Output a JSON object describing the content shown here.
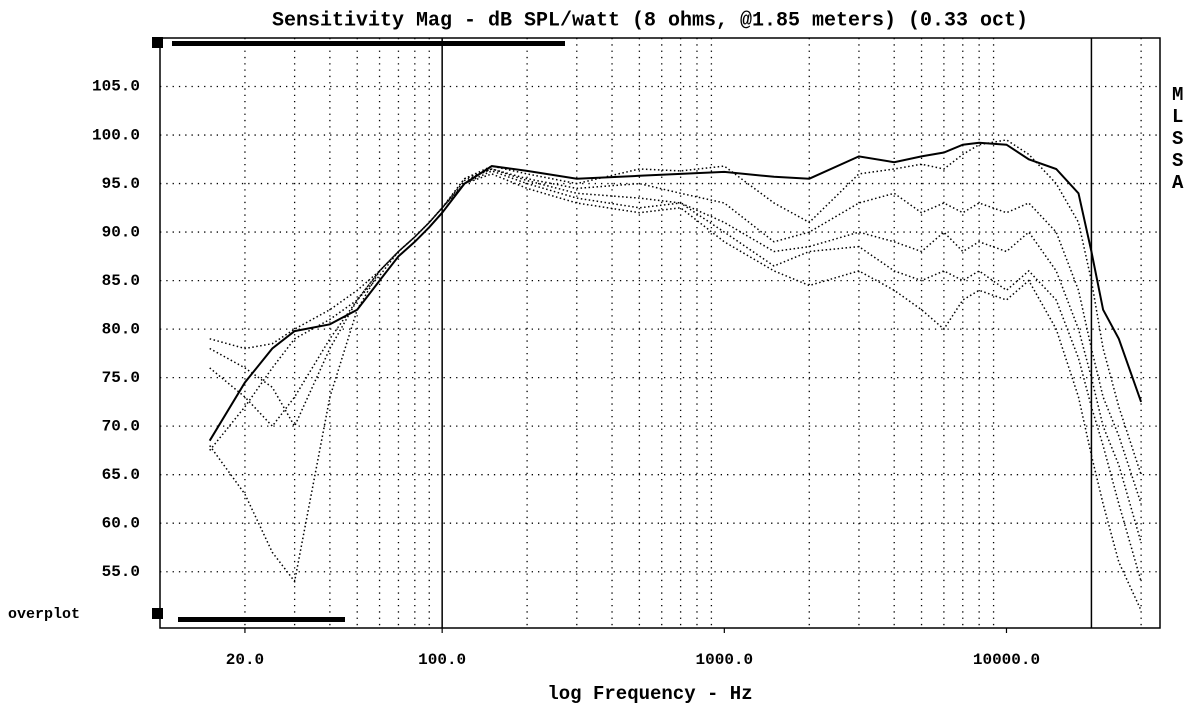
{
  "chart_data": {
    "type": "line",
    "title": "Sensitivity Mag - dB SPL/watt (8 ohms, @1.85 meters) (0.33 oct)",
    "x_label": "log Frequency - Hz",
    "side_label": "MLSSA",
    "overlay_label": "overplot",
    "x_scale": "log",
    "xlim": [
      10,
      35000
    ],
    "ylim": [
      49.2,
      110
    ],
    "xticks": [
      {
        "value": 20,
        "label": "20.0"
      },
      {
        "value": 100,
        "label": "100.0"
      },
      {
        "value": 1000,
        "label": "1000.0"
      },
      {
        "value": 10000,
        "label": "10000.0"
      }
    ],
    "yticks": [
      {
        "value": 55,
        "label": "55.0"
      },
      {
        "value": 60,
        "label": "60.0"
      },
      {
        "value": 65,
        "label": "65.0"
      },
      {
        "value": 70,
        "label": "70.0"
      },
      {
        "value": 75,
        "label": "75.0"
      },
      {
        "value": 80,
        "label": "80.0"
      },
      {
        "value": 85,
        "label": "85.0"
      },
      {
        "value": 90,
        "label": "90.0"
      },
      {
        "value": 95,
        "label": "95.0"
      },
      {
        "value": 100,
        "label": "100.0"
      },
      {
        "value": 105,
        "label": "105.0"
      }
    ],
    "grid": true,
    "xgrid": [
      20,
      30,
      40,
      50,
      60,
      70,
      80,
      90,
      200,
      300,
      400,
      500,
      600,
      700,
      800,
      900,
      2000,
      3000,
      4000,
      5000,
      6000,
      7000,
      8000,
      9000,
      30000
    ],
    "vlines": [
      100,
      20000
    ],
    "x": [
      15,
      20,
      25,
      30,
      40,
      50,
      60,
      70,
      80,
      90,
      100,
      120,
      150,
      200,
      300,
      500,
      700,
      1000,
      1500,
      2000,
      3000,
      4000,
      5000,
      6000,
      7000,
      8000,
      10000,
      12000,
      15000,
      18000,
      20000,
      22000,
      25000,
      30000
    ],
    "series": [
      {
        "color": "#000000",
        "line_style": "solid",
        "values": [
          68.5,
          74.5,
          78,
          79.8,
          80.5,
          82,
          85,
          87.5,
          89,
          90.5,
          92,
          95,
          96.8,
          96.3,
          95.5,
          95.8,
          96,
          96.2,
          95.7,
          95.5,
          97.8,
          97.2,
          97.8,
          98.2,
          99,
          99.2,
          99,
          97.5,
          96.5,
          94,
          88,
          82,
          79,
          72.5
        ]
      },
      {
        "color": "#000000",
        "line_style": "dotted",
        "values": [
          67.5,
          72,
          76,
          79,
          81,
          83,
          85.5,
          88,
          89.5,
          91,
          92.5,
          95.5,
          96.8,
          96,
          95,
          96.5,
          96.3,
          96.8,
          93,
          91,
          96,
          96.5,
          97,
          96.5,
          98,
          99,
          99.5,
          98,
          95,
          91,
          85,
          78,
          72,
          65
        ]
      },
      {
        "color": "#000000",
        "line_style": "dotted",
        "values": [
          79,
          78,
          78.5,
          80,
          82,
          84,
          86,
          88,
          89.5,
          91,
          92.5,
          95.5,
          96.5,
          95.5,
          94.5,
          95,
          94,
          93,
          89,
          90,
          93,
          94,
          92,
          93,
          92,
          93,
          92,
          93,
          90,
          84,
          78,
          73,
          69,
          62
        ]
      },
      {
        "color": "#000000",
        "line_style": "dotted",
        "values": [
          78,
          76,
          74,
          70,
          78,
          83,
          86,
          88,
          89.5,
          91,
          92.5,
          95.3,
          96.5,
          95.3,
          94,
          93.5,
          93,
          91,
          88,
          88.5,
          90,
          89,
          88,
          90,
          88,
          89,
          88,
          90,
          86,
          80,
          75,
          70,
          66,
          58
        ]
      },
      {
        "color": "#000000",
        "line_style": "dotted",
        "values": [
          76,
          73,
          70,
          73,
          79,
          83,
          86,
          88,
          89.5,
          91,
          92.5,
          95,
          96.3,
          95,
          93.5,
          92.5,
          93,
          90,
          86.5,
          88,
          88.5,
          86,
          85,
          86,
          85,
          86,
          84,
          86,
          83,
          77,
          72,
          68,
          62,
          54
        ]
      },
      {
        "color": "#000000",
        "line_style": "dotted",
        "values": [
          68,
          63,
          57,
          54,
          73,
          82,
          86,
          88,
          89.5,
          91,
          92.5,
          95,
          96,
          94.5,
          93,
          92,
          92.5,
          89,
          86,
          84.5,
          86,
          84,
          82,
          80,
          83,
          84,
          83,
          85,
          80,
          73,
          67,
          62,
          56,
          51
        ]
      }
    ]
  }
}
